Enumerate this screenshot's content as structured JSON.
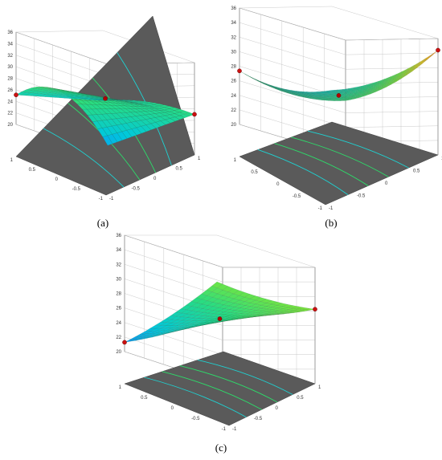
{
  "chart_data": [
    {
      "type": "surface",
      "panel_label": "(a)",
      "z_ticks": [
        "20",
        "22",
        "24",
        "26",
        "28",
        "30",
        "32",
        "34",
        "36"
      ],
      "x_ticks": [
        "1",
        "0.5",
        "0",
        "-0.5",
        "-1"
      ],
      "y_ticks": [
        "1",
        "0.5",
        "0",
        "-0.5",
        "-1"
      ],
      "zlim": [
        20,
        36
      ],
      "grid": true
    },
    {
      "type": "surface",
      "panel_label": "(b)",
      "z_ticks": [
        "20",
        "22",
        "24",
        "26",
        "28",
        "30",
        "32",
        "34",
        "36"
      ],
      "x_ticks": [
        "1",
        "0.5",
        "0",
        "-0.5",
        "-1"
      ],
      "y_ticks": [
        "1",
        "0.5",
        "0",
        "-0.5",
        "-1"
      ],
      "zlim": [
        20,
        36
      ],
      "grid": true
    },
    {
      "type": "surface",
      "panel_label": "(c)",
      "z_ticks": [
        "20",
        "22",
        "24",
        "26",
        "28",
        "30",
        "32",
        "34",
        "36"
      ],
      "x_ticks": [
        "1",
        "0.5",
        "0",
        "-0.5",
        "-1"
      ],
      "y_ticks": [
        "1",
        "0.5",
        "0",
        "-0.5",
        "-1"
      ],
      "zlim": [
        20,
        36
      ],
      "grid": true
    }
  ]
}
